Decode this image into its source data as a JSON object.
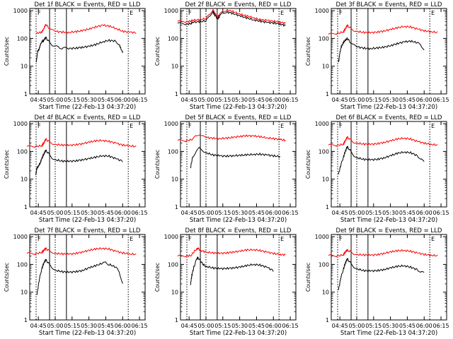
{
  "panels": [
    {
      "title": "Det 1f BLACK = Events, RED = LLD",
      "black": [
        [
          4.72,
          14
        ],
        [
          4.74,
          35
        ],
        [
          4.76,
          40
        ],
        [
          4.78,
          60
        ],
        [
          4.8,
          75
        ],
        [
          4.83,
          85
        ],
        [
          4.86,
          110
        ],
        [
          4.9,
          80
        ],
        [
          4.95,
          60
        ],
        [
          5.0,
          52
        ],
        [
          5.05,
          48
        ],
        [
          5.1,
          45
        ],
        [
          5.15,
          45
        ],
        [
          5.2,
          43
        ],
        [
          5.3,
          45
        ],
        [
          5.4,
          48
        ],
        [
          5.5,
          52
        ],
        [
          5.6,
          60
        ],
        [
          5.7,
          75
        ],
        [
          5.8,
          85
        ],
        [
          5.9,
          80
        ],
        [
          5.95,
          60
        ],
        [
          5.98,
          40
        ],
        [
          6.0,
          32
        ]
      ],
      "red": [
        [
          4.72,
          150
        ],
        [
          4.8,
          170
        ],
        [
          4.83,
          220
        ],
        [
          4.86,
          320
        ],
        [
          4.9,
          250
        ],
        [
          4.95,
          200
        ],
        [
          5.0,
          180
        ],
        [
          5.1,
          170
        ],
        [
          5.2,
          165
        ],
        [
          5.3,
          175
        ],
        [
          5.4,
          190
        ],
        [
          5.5,
          220
        ],
        [
          5.6,
          260
        ],
        [
          5.7,
          300
        ],
        [
          5.8,
          280
        ],
        [
          5.9,
          230
        ],
        [
          6.0,
          180
        ],
        [
          6.1,
          170
        ],
        [
          6.2,
          160
        ]
      ]
    },
    {
      "title": "Det 2f BLACK = Events, RED = LLD",
      "black": [
        [
          4.58,
          350
        ],
        [
          4.7,
          330
        ],
        [
          4.78,
          340
        ],
        [
          4.8,
          380
        ],
        [
          4.9,
          400
        ],
        [
          5.0,
          430
        ],
        [
          5.05,
          600
        ],
        [
          5.1,
          950
        ],
        [
          5.13,
          700
        ],
        [
          5.17,
          520
        ],
        [
          5.2,
          600
        ],
        [
          5.25,
          850
        ],
        [
          5.3,
          900
        ],
        [
          5.4,
          800
        ],
        [
          5.5,
          650
        ],
        [
          5.6,
          550
        ],
        [
          5.7,
          470
        ],
        [
          5.8,
          420
        ],
        [
          5.9,
          380
        ],
        [
          6.0,
          360
        ],
        [
          6.1,
          330
        ],
        [
          6.18,
          290
        ]
      ],
      "red": [
        [
          4.58,
          410
        ],
        [
          4.7,
          400
        ],
        [
          4.78,
          420
        ],
        [
          4.8,
          450
        ],
        [
          4.9,
          470
        ],
        [
          5.0,
          520
        ],
        [
          5.05,
          700
        ],
        [
          5.1,
          1100
        ],
        [
          5.13,
          800
        ],
        [
          5.17,
          600
        ],
        [
          5.2,
          700
        ],
        [
          5.25,
          950
        ],
        [
          5.3,
          1050
        ],
        [
          5.4,
          950
        ],
        [
          5.5,
          750
        ],
        [
          5.6,
          650
        ],
        [
          5.7,
          560
        ],
        [
          5.8,
          480
        ],
        [
          5.9,
          450
        ],
        [
          6.0,
          420
        ],
        [
          6.1,
          390
        ],
        [
          6.18,
          350
        ]
      ]
    },
    {
      "title": "Det 3f BLACK = Events, RED = LLD",
      "black": [
        [
          4.73,
          14
        ],
        [
          4.75,
          30
        ],
        [
          4.77,
          50
        ],
        [
          4.8,
          70
        ],
        [
          4.83,
          85
        ],
        [
          4.86,
          100
        ],
        [
          4.9,
          75
        ],
        [
          4.95,
          58
        ],
        [
          5.0,
          50
        ],
        [
          5.1,
          45
        ],
        [
          5.2,
          43
        ],
        [
          5.3,
          45
        ],
        [
          5.4,
          48
        ],
        [
          5.5,
          55
        ],
        [
          5.6,
          65
        ],
        [
          5.7,
          75
        ],
        [
          5.8,
          80
        ],
        [
          5.9,
          70
        ],
        [
          5.95,
          55
        ],
        [
          6.0,
          42
        ]
      ],
      "red": [
        [
          4.58,
          140
        ],
        [
          4.7,
          150
        ],
        [
          4.8,
          170
        ],
        [
          4.83,
          220
        ],
        [
          4.86,
          300
        ],
        [
          4.9,
          240
        ],
        [
          4.95,
          200
        ],
        [
          5.0,
          180
        ],
        [
          5.1,
          165
        ],
        [
          5.2,
          160
        ],
        [
          5.3,
          170
        ],
        [
          5.4,
          185
        ],
        [
          5.5,
          210
        ],
        [
          5.6,
          240
        ],
        [
          5.7,
          270
        ],
        [
          5.8,
          260
        ],
        [
          5.9,
          220
        ],
        [
          6.0,
          190
        ],
        [
          6.1,
          175
        ],
        [
          6.2,
          165
        ]
      ]
    },
    {
      "title": "Det 4f BLACK = Events, RED = LLD",
      "black": [
        [
          4.71,
          14
        ],
        [
          4.73,
          25
        ],
        [
          4.75,
          30
        ],
        [
          4.78,
          40
        ],
        [
          4.8,
          55
        ],
        [
          4.83,
          80
        ],
        [
          4.86,
          110
        ],
        [
          4.9,
          85
        ],
        [
          4.95,
          60
        ],
        [
          5.0,
          50
        ],
        [
          5.1,
          45
        ],
        [
          5.2,
          44
        ],
        [
          5.3,
          46
        ],
        [
          5.4,
          50
        ],
        [
          5.5,
          55
        ],
        [
          5.6,
          62
        ],
        [
          5.7,
          70
        ],
        [
          5.8,
          68
        ],
        [
          5.9,
          55
        ],
        [
          6.0,
          45
        ]
      ],
      "red": [
        [
          4.58,
          150
        ],
        [
          4.7,
          150
        ],
        [
          4.8,
          160
        ],
        [
          4.83,
          200
        ],
        [
          4.86,
          280
        ],
        [
          4.9,
          230
        ],
        [
          4.95,
          200
        ],
        [
          5.0,
          180
        ],
        [
          5.1,
          170
        ],
        [
          5.2,
          165
        ],
        [
          5.3,
          175
        ],
        [
          5.4,
          190
        ],
        [
          5.5,
          215
        ],
        [
          5.6,
          240
        ],
        [
          5.7,
          250
        ],
        [
          5.8,
          230
        ],
        [
          5.9,
          200
        ],
        [
          6.0,
          170
        ],
        [
          6.1,
          160
        ],
        [
          6.2,
          150
        ]
      ]
    },
    {
      "title": "Det 5f BLACK = Events, RED = LLD",
      "black": [
        [
          4.77,
          25
        ],
        [
          4.8,
          60
        ],
        [
          4.85,
          100
        ],
        [
          4.9,
          130
        ],
        [
          4.95,
          110
        ],
        [
          5.0,
          90
        ],
        [
          5.1,
          75
        ],
        [
          5.2,
          70
        ],
        [
          5.3,
          68
        ],
        [
          5.4,
          70
        ],
        [
          5.5,
          72
        ],
        [
          5.6,
          75
        ],
        [
          5.7,
          78
        ],
        [
          5.8,
          80
        ],
        [
          5.9,
          75
        ],
        [
          6.0,
          70
        ],
        [
          6.1,
          65
        ]
      ],
      "red": [
        [
          4.58,
          250
        ],
        [
          4.7,
          240
        ],
        [
          4.8,
          270
        ],
        [
          4.85,
          350
        ],
        [
          4.9,
          420
        ],
        [
          4.95,
          350
        ],
        [
          5.0,
          320
        ],
        [
          5.1,
          300
        ],
        [
          5.2,
          290
        ],
        [
          5.3,
          300
        ],
        [
          5.4,
          320
        ],
        [
          5.5,
          350
        ],
        [
          5.6,
          370
        ],
        [
          5.7,
          360
        ],
        [
          5.8,
          340
        ],
        [
          5.9,
          310
        ],
        [
          6.0,
          290
        ],
        [
          6.1,
          270
        ],
        [
          6.18,
          250
        ]
      ]
    },
    {
      "title": "Det 6f BLACK = Events, RED = LLD",
      "black": [
        [
          4.73,
          15
        ],
        [
          4.76,
          30
        ],
        [
          4.8,
          60
        ],
        [
          4.83,
          100
        ],
        [
          4.86,
          150
        ],
        [
          4.9,
          110
        ],
        [
          4.95,
          75
        ],
        [
          5.0,
          60
        ],
        [
          5.1,
          52
        ],
        [
          5.2,
          50
        ],
        [
          5.3,
          52
        ],
        [
          5.4,
          58
        ],
        [
          5.5,
          70
        ],
        [
          5.6,
          85
        ],
        [
          5.7,
          95
        ],
        [
          5.8,
          90
        ],
        [
          5.9,
          70
        ],
        [
          5.95,
          55
        ],
        [
          6.0,
          40
        ]
      ],
      "red": [
        [
          4.58,
          170
        ],
        [
          4.7,
          165
        ],
        [
          4.8,
          180
        ],
        [
          4.83,
          240
        ],
        [
          4.86,
          330
        ],
        [
          4.9,
          270
        ],
        [
          4.95,
          220
        ],
        [
          5.0,
          200
        ],
        [
          5.1,
          185
        ],
        [
          5.2,
          180
        ],
        [
          5.3,
          190
        ],
        [
          5.4,
          210
        ],
        [
          5.5,
          240
        ],
        [
          5.6,
          280
        ],
        [
          5.7,
          300
        ],
        [
          5.8,
          280
        ],
        [
          5.9,
          230
        ],
        [
          6.0,
          200
        ],
        [
          6.1,
          180
        ],
        [
          6.2,
          170
        ]
      ]
    },
    {
      "title": "Det 7f BLACK = Events, RED = LLD",
      "black": [
        [
          4.73,
          8
        ],
        [
          4.76,
          25
        ],
        [
          4.8,
          70
        ],
        [
          4.83,
          110
        ],
        [
          4.86,
          150
        ],
        [
          4.9,
          110
        ],
        [
          4.95,
          80
        ],
        [
          5.0,
          62
        ],
        [
          5.1,
          55
        ],
        [
          5.2,
          52
        ],
        [
          5.3,
          55
        ],
        [
          5.4,
          60
        ],
        [
          5.5,
          75
        ],
        [
          5.6,
          90
        ],
        [
          5.7,
          110
        ],
        [
          5.75,
          115
        ],
        [
          5.8,
          100
        ],
        [
          5.9,
          80
        ],
        [
          5.95,
          50
        ],
        [
          6.0,
          22
        ]
      ],
      "red": [
        [
          4.58,
          250
        ],
        [
          4.7,
          240
        ],
        [
          4.8,
          270
        ],
        [
          4.83,
          320
        ],
        [
          4.86,
          380
        ],
        [
          4.9,
          320
        ],
        [
          4.95,
          280
        ],
        [
          5.0,
          250
        ],
        [
          5.1,
          240
        ],
        [
          5.2,
          235
        ],
        [
          5.3,
          250
        ],
        [
          5.4,
          280
        ],
        [
          5.5,
          320
        ],
        [
          5.6,
          360
        ],
        [
          5.7,
          380
        ],
        [
          5.8,
          360
        ],
        [
          5.9,
          300
        ],
        [
          6.0,
          260
        ],
        [
          6.1,
          240
        ],
        [
          6.2,
          230
        ]
      ]
    },
    {
      "title": "Det 8f BLACK = Events, RED = LLD",
      "black": [
        [
          4.77,
          18
        ],
        [
          4.79,
          40
        ],
        [
          4.82,
          80
        ],
        [
          4.86,
          150
        ],
        [
          4.88,
          180
        ],
        [
          4.92,
          130
        ],
        [
          4.96,
          100
        ],
        [
          5.0,
          85
        ],
        [
          5.1,
          75
        ],
        [
          5.2,
          70
        ],
        [
          5.3,
          72
        ],
        [
          5.4,
          75
        ],
        [
          5.5,
          80
        ],
        [
          5.6,
          90
        ],
        [
          5.7,
          100
        ],
        [
          5.8,
          95
        ],
        [
          5.9,
          80
        ],
        [
          6.0,
          60
        ]
      ],
      "red": [
        [
          4.58,
          200
        ],
        [
          4.7,
          200
        ],
        [
          4.78,
          210
        ],
        [
          4.82,
          280
        ],
        [
          4.86,
          360
        ],
        [
          4.88,
          380
        ],
        [
          4.92,
          320
        ],
        [
          5.0,
          280
        ],
        [
          5.1,
          260
        ],
        [
          5.2,
          250
        ],
        [
          5.3,
          260
        ],
        [
          5.4,
          280
        ],
        [
          5.5,
          300
        ],
        [
          5.6,
          330
        ],
        [
          5.7,
          340
        ],
        [
          5.8,
          320
        ],
        [
          5.9,
          280
        ],
        [
          6.0,
          250
        ],
        [
          6.1,
          230
        ],
        [
          6.18,
          220
        ]
      ]
    },
    {
      "title": "Det 9f BLACK = Events, RED = LLD",
      "black": [
        [
          4.73,
          12
        ],
        [
          4.76,
          30
        ],
        [
          4.8,
          65
        ],
        [
          4.83,
          110
        ],
        [
          4.86,
          160
        ],
        [
          4.9,
          120
        ],
        [
          4.95,
          85
        ],
        [
          5.0,
          70
        ],
        [
          5.1,
          60
        ],
        [
          5.2,
          58
        ],
        [
          5.3,
          60
        ],
        [
          5.4,
          65
        ],
        [
          5.5,
          75
        ],
        [
          5.6,
          85
        ],
        [
          5.7,
          90
        ],
        [
          5.8,
          80
        ],
        [
          5.9,
          65
        ],
        [
          5.95,
          55
        ],
        [
          6.0,
          48
        ]
      ],
      "red": [
        [
          4.58,
          210
        ],
        [
          4.7,
          200
        ],
        [
          4.8,
          220
        ],
        [
          4.83,
          280
        ],
        [
          4.86,
          330
        ],
        [
          4.9,
          290
        ],
        [
          4.95,
          250
        ],
        [
          5.0,
          230
        ],
        [
          5.1,
          220
        ],
        [
          5.2,
          215
        ],
        [
          5.3,
          225
        ],
        [
          5.4,
          250
        ],
        [
          5.5,
          280
        ],
        [
          5.6,
          310
        ],
        [
          5.7,
          320
        ],
        [
          5.8,
          300
        ],
        [
          5.9,
          260
        ],
        [
          6.0,
          230
        ],
        [
          6.1,
          215
        ],
        [
          6.2,
          205
        ]
      ]
    }
  ],
  "chart_data": {
    "type": "line",
    "xlabel": "Start Time (22-Feb-13 04:37:20)",
    "ylabel": "Counts/sec",
    "x_ticks": [
      "04:45",
      "05:00",
      "05:15",
      "05:30",
      "05:45",
      "06:00",
      "06:15"
    ],
    "y_ticks": [
      "1",
      "10",
      "100",
      "1000"
    ],
    "y_scale": "log",
    "ylim": [
      1,
      1200
    ],
    "xlim": [
      "04:37:20",
      "06:20"
    ],
    "series_colors": {
      "Events": "#000000",
      "LLD": "#ff0000"
    },
    "dotted_markers": [
      "04:43",
      "05:00",
      "06:05"
    ],
    "solid_markers": [
      "04:55",
      "05:10"
    ],
    "marker_flags": [
      "F",
      "E"
    ]
  }
}
